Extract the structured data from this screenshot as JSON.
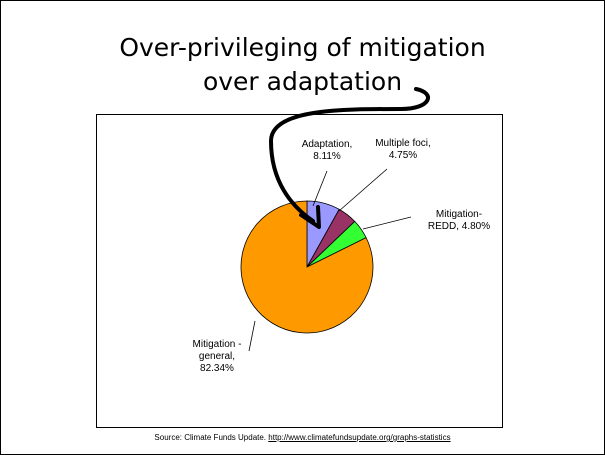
{
  "slide": {
    "title_line1": "Over-privileging of mitigation",
    "title_line2": "over adaptation",
    "source_prefix": "Source: Climate Funds Update. ",
    "source_url": "http://www.climatefundsupdate.org/graphs-statistics"
  },
  "chart_data": {
    "type": "pie",
    "categories": [
      "Adaptation",
      "Multiple foci",
      "Mitigation-REDD",
      "Mitigation - general"
    ],
    "values": [
      8.11,
      4.75,
      4.8,
      82.34
    ],
    "labels": [
      [
        "Adaptation,",
        "8.11%"
      ],
      [
        "Multiple foci,",
        "4.75%"
      ],
      [
        "Mitigation-",
        "REDD, 4.80%"
      ],
      [
        "Mitigation -",
        "general,",
        "82.34%"
      ]
    ],
    "colors": [
      "#9999ff",
      "#993366",
      "#33ff33",
      "#ff9900"
    ],
    "start_direction": "12 o'clock",
    "direction": "clockwise",
    "legend": "none"
  },
  "annotation": {
    "type": "hand-drawn arrow",
    "from": "title",
    "to": "Adaptation slice",
    "color": "#000000"
  }
}
